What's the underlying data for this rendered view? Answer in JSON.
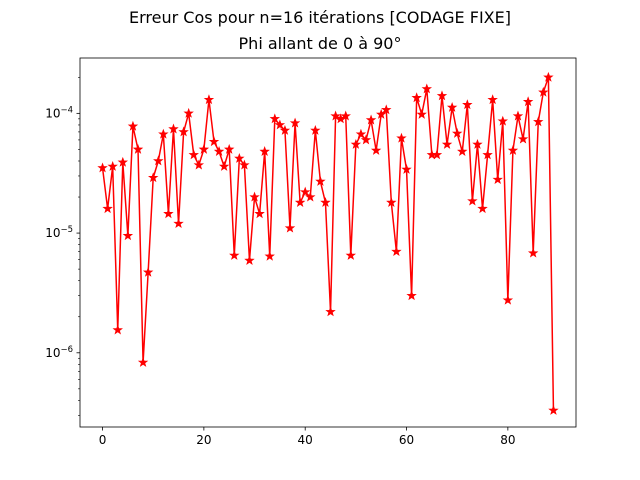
{
  "chart_data": {
    "type": "line",
    "title": "Erreur Cos pour n=16 itérations [CODAGE FIXE]",
    "subtitle": "Phi allant de 0 à 90°",
    "xlabel": "",
    "ylabel": "",
    "yscale": "log",
    "xlim": [
      -4.45,
      93.45
    ],
    "ylim": [
      2.4e-07,
      0.00029
    ],
    "grid": false,
    "legend": "none",
    "x_ticks": [
      0,
      20,
      40,
      60,
      80
    ],
    "x_tick_labels": [
      "0",
      "20",
      "40",
      "60",
      "80"
    ],
    "y_ticks": [
      1e-06,
      1e-05,
      0.0001
    ],
    "y_tick_labels": [
      {
        "base": "10",
        "exp": "−6"
      },
      {
        "base": "10",
        "exp": "−5"
      },
      {
        "base": "10",
        "exp": "−4"
      }
    ],
    "colors": {
      "series": "#ff0000",
      "axes": "#000000",
      "background": "#ffffff"
    },
    "marker": "star",
    "series": [
      {
        "x": [
          0,
          1,
          2,
          3,
          4,
          5,
          6,
          7,
          8,
          9,
          10,
          11,
          12,
          13,
          14,
          15,
          16,
          17,
          18,
          19,
          20,
          21,
          22,
          23,
          24,
          25,
          26,
          27,
          28,
          29,
          30,
          31,
          32,
          33,
          34,
          35,
          36,
          37,
          38,
          39,
          40,
          41,
          42,
          43,
          44,
          45,
          46,
          47,
          48,
          49,
          50,
          51,
          52,
          53,
          54,
          55,
          56,
          57,
          58,
          59,
          60,
          61,
          62,
          63,
          64,
          65,
          66,
          67,
          68,
          69,
          70,
          71,
          72,
          73,
          74,
          75,
          76,
          77,
          78,
          79,
          80,
          81,
          82,
          83,
          84,
          85,
          86,
          87,
          88,
          89
        ],
        "values": [
          3.5e-05,
          1.6e-05,
          3.6e-05,
          1.55e-06,
          3.9e-05,
          9.5e-06,
          7.8e-05,
          5e-05,
          8.3e-07,
          4.7e-06,
          2.9e-05,
          4e-05,
          6.7e-05,
          1.45e-05,
          7.4e-05,
          1.2e-05,
          7e-05,
          0.0001,
          4.5e-05,
          3.7e-05,
          5e-05,
          0.00013,
          5.8e-05,
          4.8e-05,
          3.6e-05,
          5e-05,
          6.5e-06,
          4.2e-05,
          3.7e-05,
          5.9e-06,
          2e-05,
          1.45e-05,
          4.8e-05,
          6.4e-06,
          9e-05,
          8e-05,
          7.2e-05,
          1.1e-05,
          8.3e-05,
          1.8e-05,
          2.2e-05,
          2e-05,
          7.2e-05,
          2.7e-05,
          1.8e-05,
          2.2e-06,
          9.5e-05,
          9e-05,
          9.5e-05,
          6.5e-06,
          5.5e-05,
          6.7e-05,
          6e-05,
          8.8e-05,
          4.9e-05,
          9.8e-05,
          0.000107,
          1.8e-05,
          7e-06,
          6.2e-05,
          3.4e-05,
          3e-06,
          0.000135,
          9.8e-05,
          0.00016,
          4.5e-05,
          4.5e-05,
          0.00014,
          5.5e-05,
          0.000112,
          6.8e-05,
          4.8e-05,
          0.000118,
          1.85e-05,
          5.5e-05,
          1.6e-05,
          4.5e-05,
          0.00013,
          2.8e-05,
          8.6e-05,
          2.75e-06,
          4.9e-05,
          9.5e-05,
          6.1e-05,
          0.000125,
          6.8e-06,
          8.5e-05,
          0.00015,
          0.0002,
          3.3e-07
        ]
      }
    ]
  }
}
